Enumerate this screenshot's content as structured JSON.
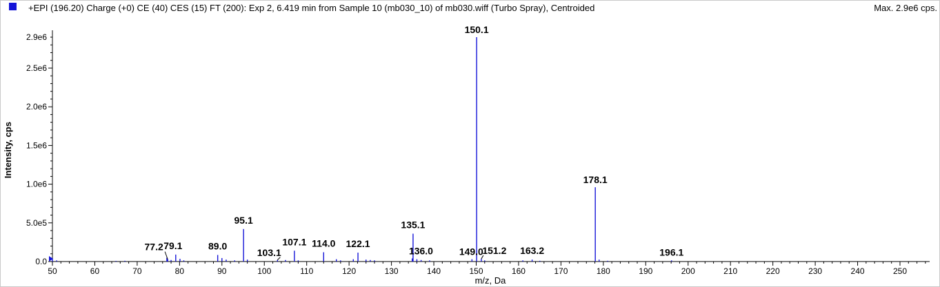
{
  "header": {
    "title": "+EPI (196.20) Charge (+0) CE (40) CES (15) FT (200): Exp 2, 6.419 min from Sample 10 (mb030_10) of mb030.wiff (Turbo Spray), Centroided",
    "max_label": "Max. 2.9e6 cps.",
    "series_color": "#1515d8"
  },
  "chart_data": {
    "type": "bar",
    "title": "+EPI (196.20) Charge (+0) CE (40) CES (15) FT (200): Exp 2, 6.419 min from Sample 10 (mb030_10) of mb030.wiff (Turbo Spray), Centroided",
    "xlabel": "m/z, Da",
    "ylabel": "Intensity, cps",
    "xlim": [
      50,
      257
    ],
    "ylim": [
      0,
      3050000.0
    ],
    "x_ticks": [
      50,
      60,
      70,
      80,
      90,
      100,
      110,
      120,
      130,
      140,
      150,
      160,
      170,
      180,
      190,
      200,
      210,
      220,
      230,
      240,
      250
    ],
    "x_tick_labels": [
      "50",
      "60",
      "70",
      "80",
      "90",
      "100",
      "110",
      "120",
      "130",
      "140",
      "150",
      "160",
      "170",
      "180",
      "190",
      "200",
      "210",
      "220",
      "230",
      "240",
      "250"
    ],
    "y_ticks": [
      0,
      500000,
      1000000,
      1500000,
      2000000,
      2500000,
      2900000
    ],
    "y_tick_labels": [
      "0.0",
      "5.0e5",
      "1.0e6",
      "1.5e6",
      "2.0e6",
      "2.5e6",
      "2.9e6"
    ],
    "grid": false,
    "color": "#1515d8",
    "peaks": [
      {
        "x": 50.0,
        "y": 40000
      },
      {
        "x": 51.0,
        "y": 15000
      },
      {
        "x": 65.0,
        "y": 8000
      },
      {
        "x": 67.1,
        "y": 10000
      },
      {
        "x": 77.0,
        "y": 50000
      },
      {
        "x": 77.2,
        "y": 30000
      },
      {
        "x": 78.0,
        "y": 20000
      },
      {
        "x": 79.1,
        "y": 90000
      },
      {
        "x": 80.1,
        "y": 35000
      },
      {
        "x": 81.0,
        "y": 15000
      },
      {
        "x": 89.0,
        "y": 85000
      },
      {
        "x": 90.0,
        "y": 45000
      },
      {
        "x": 91.0,
        "y": 25000
      },
      {
        "x": 93.0,
        "y": 15000
      },
      {
        "x": 95.1,
        "y": 420000
      },
      {
        "x": 96.0,
        "y": 25000
      },
      {
        "x": 103.1,
        "y": 20000
      },
      {
        "x": 105.0,
        "y": 20000
      },
      {
        "x": 107.1,
        "y": 140000
      },
      {
        "x": 108.0,
        "y": 15000
      },
      {
        "x": 114.0,
        "y": 120000
      },
      {
        "x": 117.0,
        "y": 30000
      },
      {
        "x": 118.0,
        "y": 15000
      },
      {
        "x": 121.0,
        "y": 30000
      },
      {
        "x": 122.1,
        "y": 115000
      },
      {
        "x": 124.0,
        "y": 25000
      },
      {
        "x": 125.0,
        "y": 20000
      },
      {
        "x": 126.0,
        "y": 15000
      },
      {
        "x": 134.9,
        "y": 40000
      },
      {
        "x": 135.1,
        "y": 360000
      },
      {
        "x": 136.0,
        "y": 30000
      },
      {
        "x": 137.0,
        "y": 20000
      },
      {
        "x": 139.0,
        "y": 15000
      },
      {
        "x": 149.0,
        "y": 30000
      },
      {
        "x": 150.1,
        "y": 2900000
      },
      {
        "x": 151.2,
        "y": 35000
      },
      {
        "x": 152.0,
        "y": 15000
      },
      {
        "x": 161.0,
        "y": 15000
      },
      {
        "x": 163.2,
        "y": 25000
      },
      {
        "x": 165.0,
        "y": 10000
      },
      {
        "x": 178.1,
        "y": 960000
      },
      {
        "x": 179.0,
        "y": 25000
      },
      {
        "x": 181.0,
        "y": 10000
      },
      {
        "x": 196.1,
        "y": 15000
      }
    ],
    "annotations": [
      {
        "label": "77.2",
        "x": 77.2
      },
      {
        "label": "79.1",
        "x": 79.1
      },
      {
        "label": "89.0",
        "x": 89.0
      },
      {
        "label": "95.1",
        "x": 95.1
      },
      {
        "label": "103.1",
        "x": 103.1
      },
      {
        "label": "107.1",
        "x": 107.1
      },
      {
        "label": "114.0",
        "x": 114.0
      },
      {
        "label": "122.1",
        "x": 122.1
      },
      {
        "label": "135.1",
        "x": 135.1
      },
      {
        "label": "136.0",
        "x": 136.0
      },
      {
        "label": "149.0",
        "x": 149.0
      },
      {
        "label": "150.1",
        "x": 150.1
      },
      {
        "label": "151.2",
        "x": 151.2
      },
      {
        "label": "163.2",
        "x": 163.2
      },
      {
        "label": "178.1",
        "x": 178.1
      },
      {
        "label": "196.1",
        "x": 196.1
      }
    ]
  }
}
